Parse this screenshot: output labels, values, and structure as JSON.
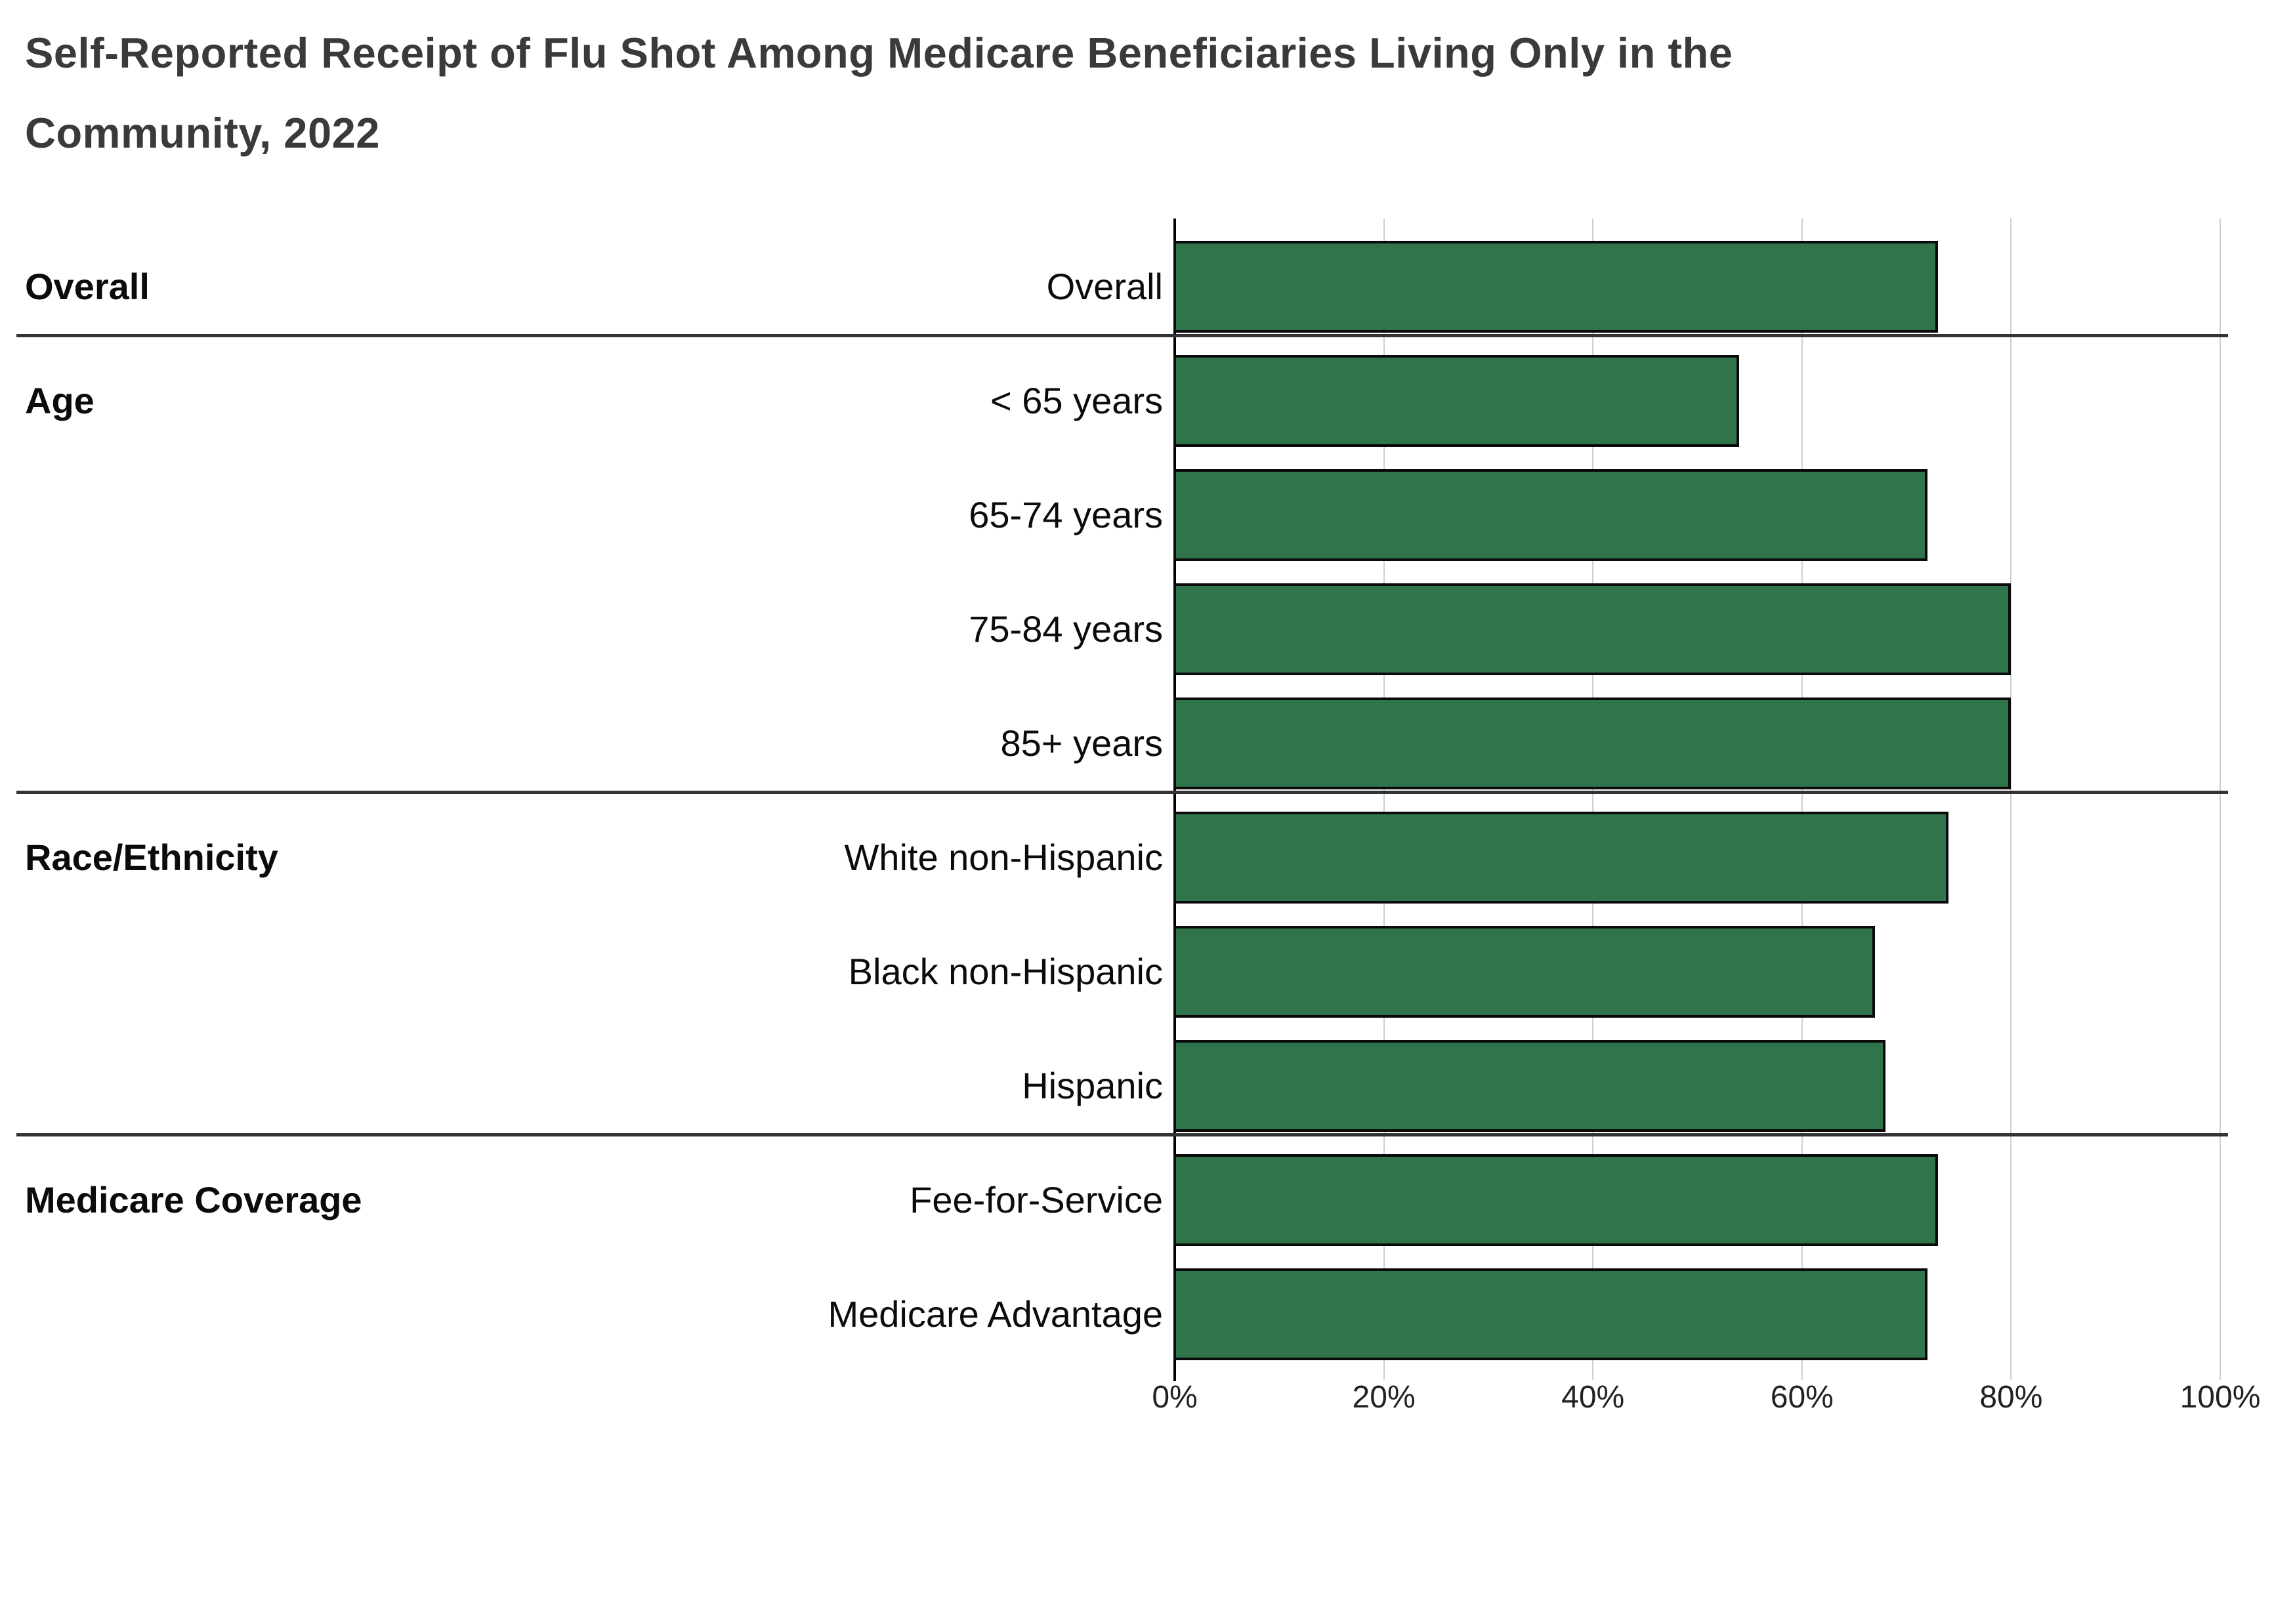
{
  "title": {
    "line1": "Self-Reported Receipt of Flu Shot Among Medicare Beneficiaries Living Only in the",
    "line2": "Community, 2022"
  },
  "colors": {
    "bar_fill": "#30744c",
    "bar_border": "#0a0a0a",
    "gridline": "#cfcfcf",
    "axis_line": "#000000",
    "separator": "#333333",
    "title_text": "#3a3a3a",
    "label_text": "#0b0b0b"
  },
  "chart_data": {
    "type": "bar",
    "orientation": "horizontal",
    "title": "Self-Reported Receipt of Flu Shot Among Medicare Beneficiaries Living Only in the Community, 2022",
    "unit": "percent",
    "xlabel": "",
    "ylabel": "",
    "x_range": [
      0,
      100
    ],
    "x_ticks": [
      "0%",
      "20%",
      "40%",
      "60%",
      "80%",
      "100%"
    ],
    "grid": true,
    "legend": false,
    "groups": [
      {
        "label": "Overall",
        "categories": [
          "Overall"
        ],
        "values": [
          73
        ]
      },
      {
        "label": "Age",
        "categories": [
          "< 65 years",
          "65-74 years",
          "75-84 years",
          "85+ years"
        ],
        "values": [
          54,
          72,
          80,
          80
        ]
      },
      {
        "label": "Race/Ethnicity",
        "categories": [
          "White non-Hispanic",
          "Black non-Hispanic",
          "Hispanic"
        ],
        "values": [
          74,
          67,
          68
        ]
      },
      {
        "label": "Medicare Coverage",
        "categories": [
          "Fee-for-Service",
          "Medicare Advantage"
        ],
        "values": [
          73,
          72
        ]
      }
    ]
  }
}
